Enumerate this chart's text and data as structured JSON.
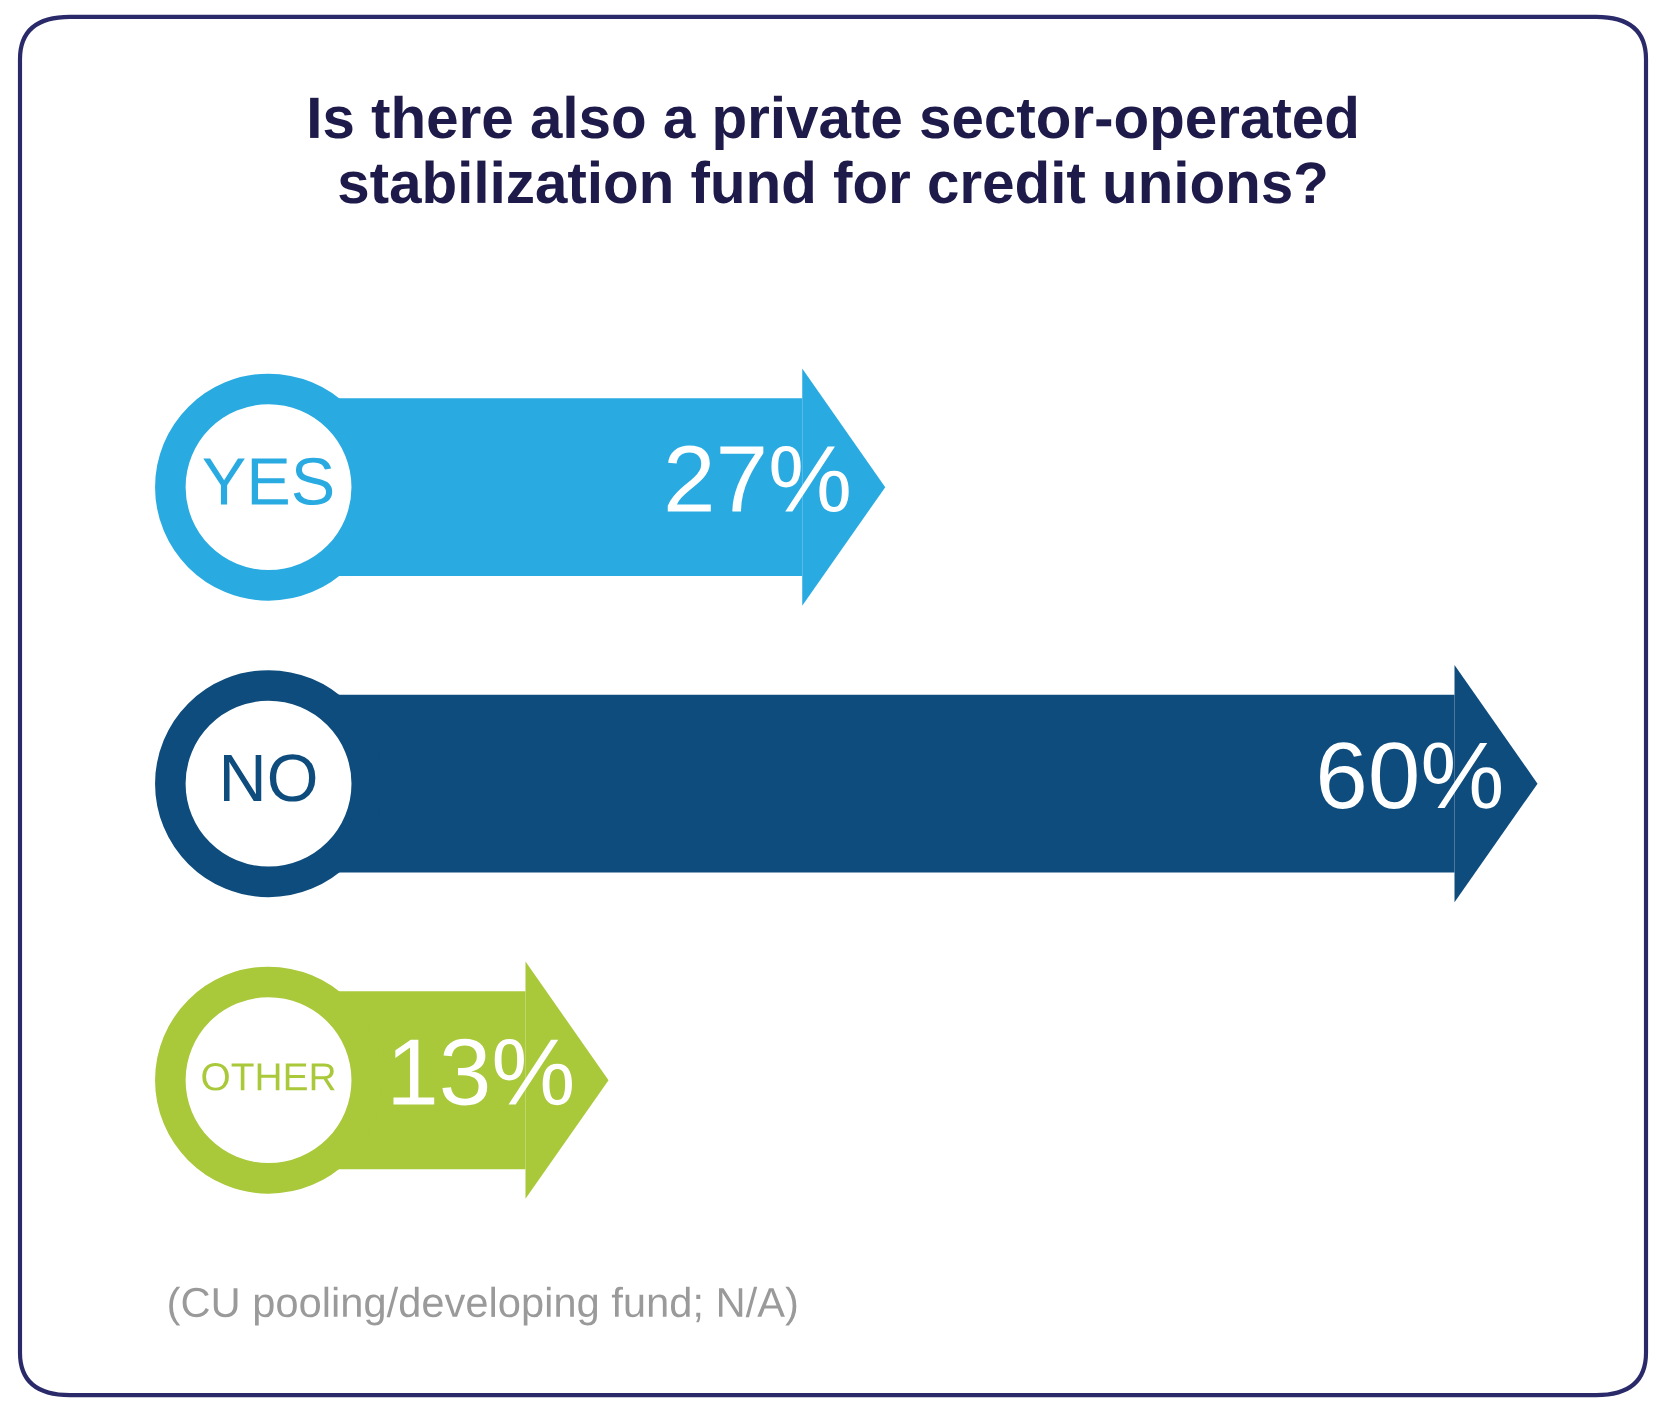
{
  "chart_data": {
    "type": "bar",
    "orientation": "horizontal",
    "title": "Is there also a private sector-operated\nstabilization fund for credit unions?",
    "categories": [
      "YES",
      "NO",
      "OTHER"
    ],
    "values": [
      27,
      60,
      13
    ],
    "colors": [
      "#29abe2",
      "#0e4c7d",
      "#a9c83a"
    ],
    "data_labels": true,
    "value_labels": [
      "27%",
      "60%",
      "13%"
    ],
    "annotations": [
      "(CU pooling/developing fund; N/A)"
    ]
  }
}
